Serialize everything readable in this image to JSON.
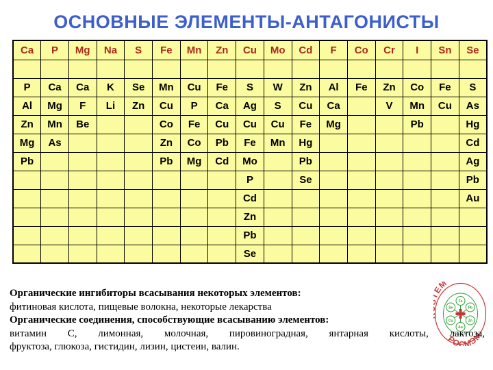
{
  "title": "ОСНОВНЫЕ ЭЛЕМЕНТЫ-АНТАГОНИСТЫ",
  "table": {
    "headers": [
      "Ca",
      "P",
      "Mg",
      "Na",
      "S",
      "Fe",
      "Mn",
      "Zn",
      "Cu",
      "Mo",
      "Cd",
      "F",
      "Co",
      "Cr",
      "I",
      "Sn",
      "Se"
    ],
    "rows": [
      [
        "",
        "",
        "",
        "",
        "",
        "",
        "",
        "",
        "",
        "",
        "",
        "",
        "",
        "",
        "",
        "",
        ""
      ],
      [
        "P",
        "Ca",
        "Ca",
        "K",
        "Se",
        "Mn",
        "Cu",
        "Fe",
        "S",
        "W",
        "Zn",
        "Al",
        "Fe",
        "Zn",
        "Co",
        "Fe",
        "S"
      ],
      [
        "Al",
        "Mg",
        "F",
        "Li",
        "Zn",
        "Cu",
        "P",
        "Ca",
        "Ag",
        "S",
        "Cu",
        "Ca",
        "",
        "V",
        "Mn",
        "Cu",
        "As"
      ],
      [
        "Zn",
        "Mn",
        "Be",
        "",
        "",
        "Co",
        "Fe",
        "Cu",
        "Cu",
        "Cu",
        "Fe",
        "Mg",
        "",
        "",
        "Pb",
        "",
        "Hg"
      ],
      [
        "Mg",
        "As",
        "",
        "",
        "",
        "Zn",
        "Co",
        "Pb",
        "Fe",
        "Mn",
        "Hg",
        "",
        "",
        "",
        "",
        "",
        "Cd"
      ],
      [
        "Pb",
        "",
        "",
        "",
        "",
        "Pb",
        "Mg",
        "Cd",
        "Mo",
        "",
        "Pb",
        "",
        "",
        "",
        "",
        "",
        "Ag"
      ],
      [
        "",
        "",
        "",
        "",
        "",
        "",
        "",
        "",
        "P",
        "",
        "Se",
        "",
        "",
        "",
        "",
        "",
        "Pb"
      ],
      [
        "",
        "",
        "",
        "",
        "",
        "",
        "",
        "",
        "Cd",
        "",
        "",
        "",
        "",
        "",
        "",
        "",
        "Au"
      ],
      [
        "",
        "",
        "",
        "",
        "",
        "",
        "",
        "",
        "Zn",
        "",
        "",
        "",
        "",
        "",
        "",
        "",
        ""
      ],
      [
        "",
        "",
        "",
        "",
        "",
        "",
        "",
        "",
        "Pb",
        "",
        "",
        "",
        "",
        "",
        "",
        "",
        ""
      ],
      [
        "",
        "",
        "",
        "",
        "",
        "",
        "",
        "",
        "Se",
        "",
        "",
        "",
        "",
        "",
        "",
        "",
        ""
      ]
    ]
  },
  "notes": {
    "inhibitors_heading": "Органические ингибиторы всасывания некоторых элементов:",
    "inhibitors_list": "фитиновая кислота, пищевые волокна, некоторые лекарства",
    "promoters_heading": "Органические соединения, способствующие всасыванию элементов:",
    "promoters_list_line1": "витамин С, лимонная, молочная, пировиноградная, янтарная кислоты, лактоза,",
    "promoters_list_line2": "фруктоза, глюкоза, гистидин, лизин, цистеин, валин."
  },
  "logo": {
    "arc_text_top": "RUSTEM",
    "arc_text_bottom": "РОСМЭМ",
    "atom_labels": [
      "Fe",
      "Pb",
      "Zn",
      "Au",
      "Cu",
      "Se"
    ]
  },
  "colors": {
    "title_blue": "#3D5FCC",
    "header_red": "#A82A1E",
    "cell_yellow": "#FBFB9F",
    "grid_black": "#000000",
    "logo_red": "#C93434",
    "logo_green": "#2E9E44"
  }
}
